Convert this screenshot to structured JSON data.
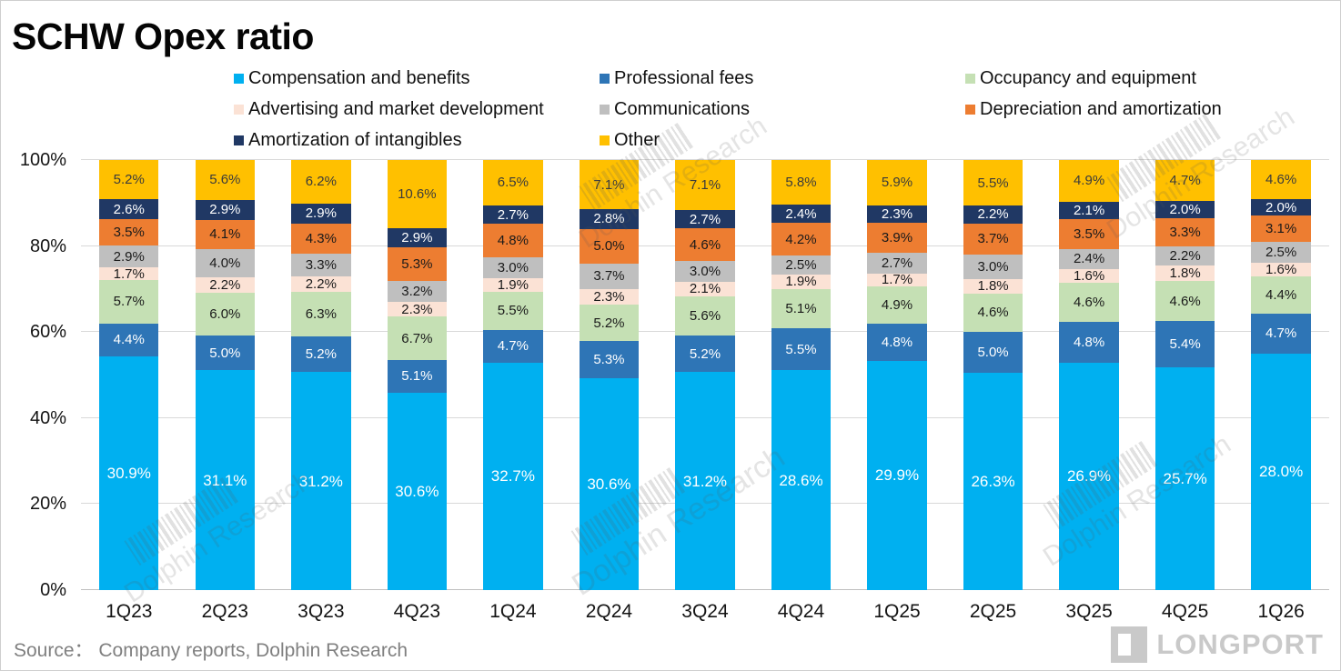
{
  "title": "SCHW Opex ratio",
  "source": "Source：  Company reports, Dolphin Research",
  "watermark": {
    "text": "Dolphin Research"
  },
  "logo": {
    "text": "LONGPORT"
  },
  "chart_data": {
    "type": "bar",
    "stacked": true,
    "normalized_to_100_percent": true,
    "title": "SCHW Opex ratio",
    "xlabel": "",
    "ylabel": "",
    "ylim": [
      0,
      100
    ],
    "y_ticks": [
      "0%",
      "20%",
      "40%",
      "60%",
      "80%",
      "100%"
    ],
    "grid": true,
    "legend_position": "top",
    "value_label_format": "0.0%",
    "categories": [
      "1Q23",
      "2Q23",
      "3Q23",
      "4Q23",
      "1Q24",
      "2Q24",
      "3Q24",
      "4Q24",
      "1Q25",
      "2Q25",
      "3Q25",
      "4Q25",
      "1Q26"
    ],
    "series": [
      {
        "name": "Compensation and benefits",
        "color": "#00B0F0",
        "label_color": "#FFFFFF",
        "values": [
          30.9,
          31.1,
          31.2,
          30.6,
          32.7,
          30.6,
          31.2,
          28.6,
          29.9,
          26.3,
          26.9,
          25.7,
          28.0
        ]
      },
      {
        "name": "Professional fees",
        "color": "#2E75B6",
        "label_color": "#FFFFFF",
        "values": [
          4.4,
          5.0,
          5.2,
          5.1,
          4.7,
          5.3,
          5.2,
          5.5,
          4.8,
          5.0,
          4.8,
          5.4,
          4.7
        ]
      },
      {
        "name": "Occupancy and equipment",
        "color": "#C5E0B4",
        "label_color": "#1a1a1a",
        "values": [
          5.7,
          6.0,
          6.3,
          6.7,
          5.5,
          5.2,
          5.6,
          5.1,
          4.9,
          4.6,
          4.6,
          4.6,
          4.4
        ]
      },
      {
        "name": "Advertising and market development",
        "color": "#FBE2D5",
        "label_color": "#1a1a1a",
        "values": [
          1.7,
          2.2,
          2.2,
          2.3,
          1.9,
          2.3,
          2.1,
          1.9,
          1.7,
          1.8,
          1.6,
          1.8,
          1.6
        ]
      },
      {
        "name": "Communications",
        "color": "#BFBFBF",
        "label_color": "#1a1a1a",
        "values": [
          2.9,
          4.0,
          3.3,
          3.2,
          3.0,
          3.7,
          3.0,
          2.5,
          2.7,
          3.0,
          2.4,
          2.2,
          2.5
        ]
      },
      {
        "name": "Depreciation and amortization",
        "color": "#ED7D31",
        "label_color": "#1a1a1a",
        "values": [
          3.5,
          4.1,
          4.3,
          5.3,
          4.8,
          5.0,
          4.6,
          4.2,
          3.9,
          3.7,
          3.5,
          3.3,
          3.1
        ]
      },
      {
        "name": "Amortization of intangibles",
        "color": "#203864",
        "label_color": "#FFFFFF",
        "values": [
          2.6,
          2.9,
          2.9,
          2.9,
          2.7,
          2.8,
          2.7,
          2.4,
          2.3,
          2.2,
          2.1,
          2.0,
          2.0
        ]
      },
      {
        "name": "Other",
        "color": "#FFC000",
        "label_color": "#3b3b3b",
        "values": [
          5.2,
          5.6,
          6.2,
          10.6,
          6.5,
          7.1,
          7.1,
          5.8,
          5.9,
          5.5,
          4.9,
          4.7,
          4.6
        ]
      }
    ]
  }
}
